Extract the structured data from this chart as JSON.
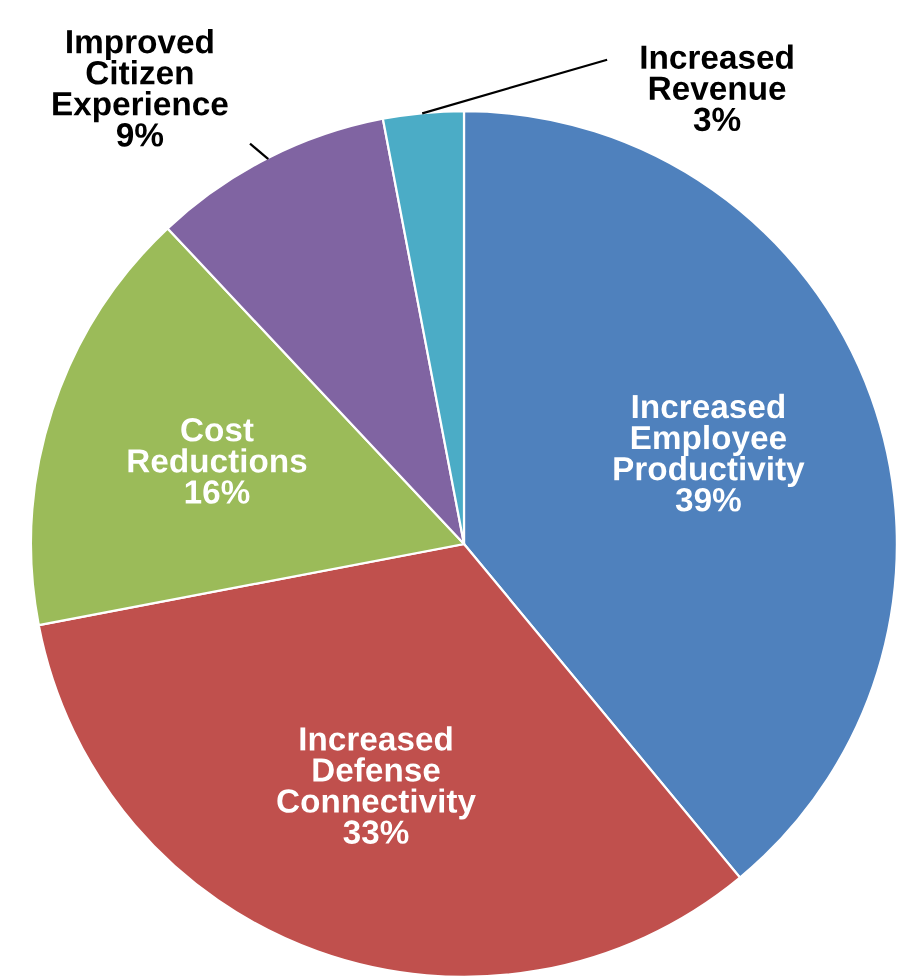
{
  "chart_data": {
    "type": "pie",
    "categories": [
      "Increased\nEmployee\nProductivity",
      "Increased\nDefense\nConnectivity",
      "Cost\nReductions",
      "Improved\nCitizen\nExperience",
      "Increased\nRevenue"
    ],
    "values": [
      39,
      33,
      16,
      9,
      3
    ],
    "colors": [
      "#4f81bd",
      "#c0504d",
      "#9bbb59",
      "#8064a2",
      "#4bacc6"
    ],
    "value_labels": [
      "39%",
      "33%",
      "16%",
      "9%",
      "3%"
    ],
    "legend": false
  }
}
